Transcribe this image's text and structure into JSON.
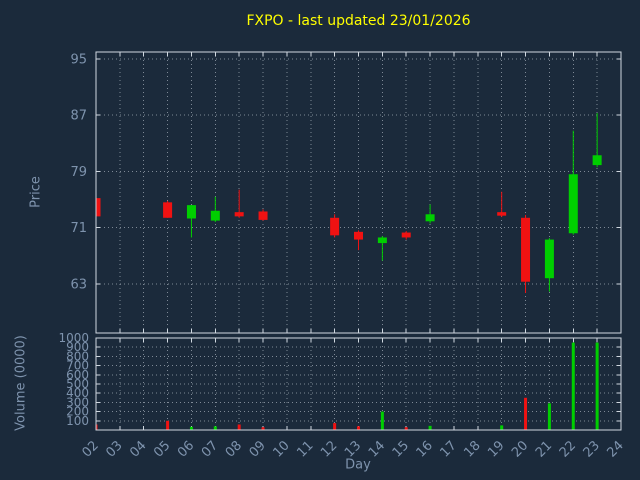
{
  "title": "FXPO - last updated 23/01/2026",
  "colors": {
    "background": "#1b2a3b",
    "title": "#ffff00",
    "axis_text": "#7e93ad",
    "border": "#d0d8e0",
    "grid": "#cfd8e2",
    "up": "#00cf00",
    "down": "#f01212"
  },
  "chart_data": [
    {
      "type": "candlestick",
      "title": "FXPO - last updated 23/01/2026",
      "xlabel": "Day",
      "ylabel": "Price",
      "grid": true,
      "xlim": [
        2,
        24
      ],
      "ylim": [
        56,
        96
      ],
      "x_ticks": [
        "02",
        "03",
        "04",
        "05",
        "06",
        "07",
        "08",
        "09",
        "10",
        "11",
        "12",
        "13",
        "14",
        "15",
        "16",
        "17",
        "18",
        "19",
        "20",
        "21",
        "22",
        "23",
        "24"
      ],
      "y_ticks": [
        63,
        71,
        79,
        87,
        95
      ],
      "candles": [
        {
          "day": 2,
          "open": 75.2,
          "high": 75.2,
          "low": 72.6,
          "close": 72.6
        },
        {
          "day": 5,
          "open": 74.6,
          "high": 74.8,
          "low": 72.4,
          "close": 72.4
        },
        {
          "day": 6,
          "open": 72.3,
          "high": 74.2,
          "low": 69.6,
          "close": 74.2
        },
        {
          "day": 7,
          "open": 72.0,
          "high": 75.4,
          "low": 71.8,
          "close": 73.4
        },
        {
          "day": 8,
          "open": 73.2,
          "high": 76.4,
          "low": 72.4,
          "close": 72.6
        },
        {
          "day": 9,
          "open": 73.3,
          "high": 73.6,
          "low": 72.0,
          "close": 72.1
        },
        {
          "day": 12,
          "open": 72.4,
          "high": 72.9,
          "low": 69.6,
          "close": 69.9
        },
        {
          "day": 13,
          "open": 70.4,
          "high": 70.6,
          "low": 67.8,
          "close": 69.3
        },
        {
          "day": 14,
          "open": 68.8,
          "high": 69.8,
          "low": 66.3,
          "close": 69.6
        },
        {
          "day": 15,
          "open": 70.3,
          "high": 70.5,
          "low": 69.3,
          "close": 69.6
        },
        {
          "day": 16,
          "open": 71.9,
          "high": 74.3,
          "low": 71.6,
          "close": 72.9
        },
        {
          "day": 19,
          "open": 73.2,
          "high": 76.1,
          "low": 72.5,
          "close": 72.7
        },
        {
          "day": 20,
          "open": 72.4,
          "high": 72.8,
          "low": 61.7,
          "close": 63.3
        },
        {
          "day": 21,
          "open": 63.8,
          "high": 69.5,
          "low": 61.9,
          "close": 69.3
        },
        {
          "day": 22,
          "open": 70.2,
          "high": 84.8,
          "low": 70.0,
          "close": 78.6
        },
        {
          "day": 23,
          "open": 79.9,
          "high": 87.3,
          "low": 79.6,
          "close": 81.3
        }
      ]
    },
    {
      "type": "bar",
      "title": "",
      "xlabel": "",
      "ylabel": "Volume (0000)",
      "grid": true,
      "ylim": [
        0,
        1000
      ],
      "y_ticks": [
        100,
        200,
        300,
        400,
        500,
        600,
        700,
        800,
        900,
        1000
      ],
      "bars": [
        {
          "day": 2,
          "value": 60,
          "dir": "down"
        },
        {
          "day": 5,
          "value": 100,
          "dir": "down"
        },
        {
          "day": 6,
          "value": 35,
          "dir": "up"
        },
        {
          "day": 7,
          "value": 40,
          "dir": "up"
        },
        {
          "day": 8,
          "value": 60,
          "dir": "down"
        },
        {
          "day": 9,
          "value": 30,
          "dir": "down"
        },
        {
          "day": 12,
          "value": 75,
          "dir": "down"
        },
        {
          "day": 13,
          "value": 40,
          "dir": "down"
        },
        {
          "day": 14,
          "value": 200,
          "dir": "up"
        },
        {
          "day": 15,
          "value": 30,
          "dir": "down"
        },
        {
          "day": 16,
          "value": 45,
          "dir": "up"
        },
        {
          "day": 19,
          "value": 50,
          "dir": "up"
        },
        {
          "day": 20,
          "value": 350,
          "dir": "down"
        },
        {
          "day": 21,
          "value": 290,
          "dir": "up"
        },
        {
          "day": 22,
          "value": 950,
          "dir": "up"
        },
        {
          "day": 23,
          "value": 950,
          "dir": "up"
        }
      ]
    }
  ]
}
